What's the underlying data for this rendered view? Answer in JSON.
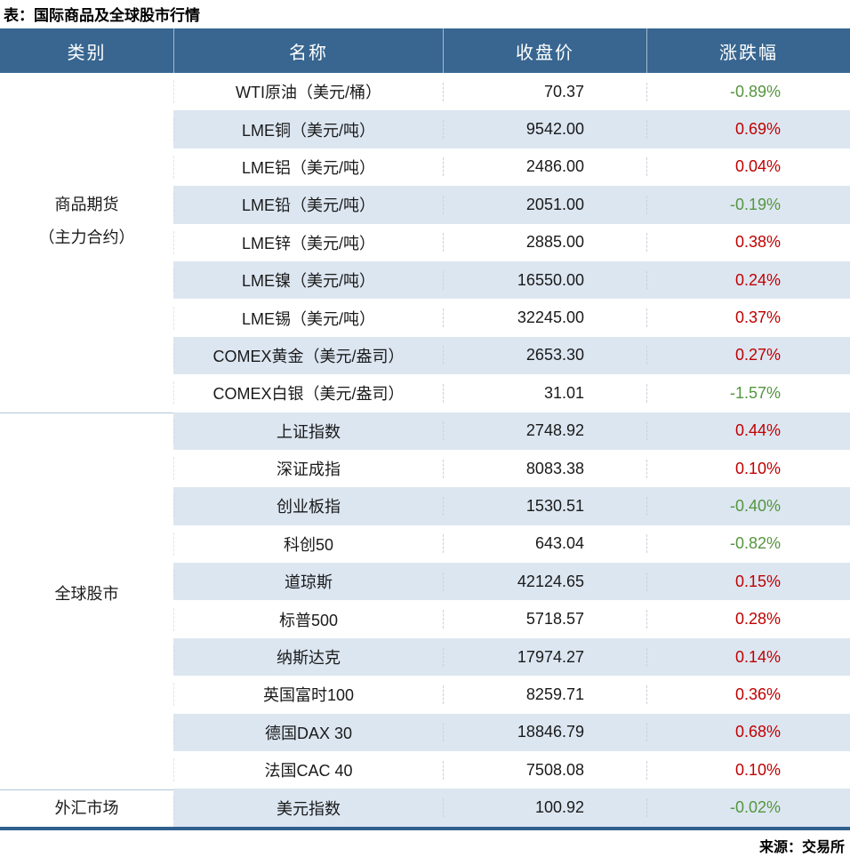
{
  "colors": {
    "header-bg": "#386690",
    "stripe": "#DCE6F1",
    "up": "#C00000",
    "down": "#55953E",
    "bottom-border": "#30608D",
    "cat-divider": "#B3C5D8"
  },
  "chart_data": {
    "type": "table",
    "title": "表：国际商品及全球股市行情",
    "columns": [
      "类别",
      "名称",
      "收盘价",
      "涨跌幅"
    ],
    "groups": [
      {
        "category": "商品期货（主力合约）",
        "category_lines": [
          "商品期货",
          "（主力合约）"
        ],
        "rows": [
          {
            "name": "WTI原油（美元/桶）",
            "close": "70.37",
            "change": "-0.89%"
          },
          {
            "name": "LME铜（美元/吨）",
            "close": "9542.00",
            "change": "0.69%"
          },
          {
            "name": "LME铝（美元/吨）",
            "close": "2486.00",
            "change": "0.04%"
          },
          {
            "name": "LME铅（美元/吨）",
            "close": "2051.00",
            "change": "-0.19%"
          },
          {
            "name": "LME锌（美元/吨）",
            "close": "2885.00",
            "change": "0.38%"
          },
          {
            "name": "LME镍（美元/吨）",
            "close": "16550.00",
            "change": "0.24%"
          },
          {
            "name": "LME锡（美元/吨）",
            "close": "32245.00",
            "change": "0.37%"
          },
          {
            "name": "COMEX黄金（美元/盎司）",
            "close": "2653.30",
            "change": "0.27%"
          },
          {
            "name": "COMEX白银（美元/盎司）",
            "close": "31.01",
            "change": "-1.57%"
          }
        ]
      },
      {
        "category": "全球股市",
        "category_lines": [
          "全球股市"
        ],
        "rows": [
          {
            "name": "上证指数",
            "close": "2748.92",
            "change": "0.44%"
          },
          {
            "name": "深证成指",
            "close": "8083.38",
            "change": "0.10%"
          },
          {
            "name": "创业板指",
            "close": "1530.51",
            "change": "-0.40%"
          },
          {
            "name": "科创50",
            "close": "643.04",
            "change": "-0.82%"
          },
          {
            "name": "道琼斯",
            "close": "42124.65",
            "change": "0.15%"
          },
          {
            "name": "标普500",
            "close": "5718.57",
            "change": "0.28%"
          },
          {
            "name": "纳斯达克",
            "close": "17974.27",
            "change": "0.14%"
          },
          {
            "name": "英国富时100",
            "close": "8259.71",
            "change": "0.36%"
          },
          {
            "name": "德国DAX 30",
            "close": "18846.79",
            "change": "0.68%"
          },
          {
            "name": "法国CAC 40",
            "close": "7508.08",
            "change": "0.10%"
          }
        ]
      },
      {
        "category": "外汇市场",
        "category_lines": [
          "外汇市场"
        ],
        "rows": [
          {
            "name": "美元指数",
            "close": "100.92",
            "change": "-0.02%"
          }
        ]
      }
    ],
    "source": "来源：交易所"
  }
}
